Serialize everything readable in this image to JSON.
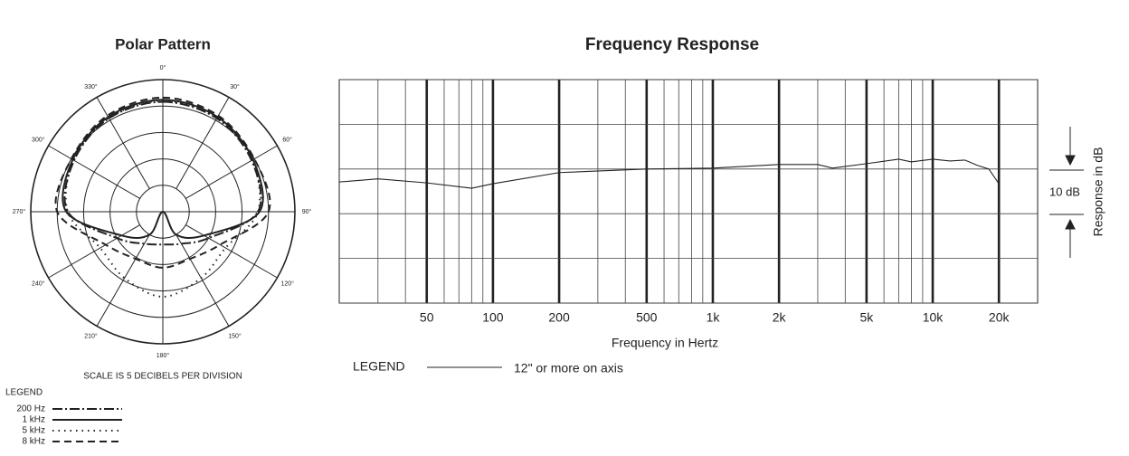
{
  "chart_data": [
    {
      "type": "polar",
      "title": "Polar Pattern",
      "annotation": "SCALE IS 5 DECIBELS PER DIVISION",
      "legend_title": "LEGEND",
      "theta": [
        0,
        30,
        60,
        90,
        120,
        150,
        180,
        210,
        240,
        270,
        300,
        330
      ],
      "thetaticks": [
        {
          "value": 0,
          "label": "0°"
        },
        {
          "value": 30,
          "label": "30°"
        },
        {
          "value": 60,
          "label": "60°"
        },
        {
          "value": 90,
          "label": "90°"
        },
        {
          "value": 120,
          "label": "120°"
        },
        {
          "value": 150,
          "label": "150°"
        },
        {
          "value": 180,
          "label": "180°"
        },
        {
          "value": 210,
          "label": "210°"
        },
        {
          "value": 240,
          "label": "240°"
        },
        {
          "value": 270,
          "label": "270°"
        },
        {
          "value": 300,
          "label": "300°"
        },
        {
          "value": 330,
          "label": "330°"
        }
      ],
      "rlim": [
        -25,
        0
      ],
      "rticks": [
        -25,
        -20,
        -15,
        -10,
        -5,
        0
      ],
      "series": [
        {
          "name": "200 Hz",
          "color": "#222222",
          "dash": "dash-dot",
          "values": [
            -4.2,
            -4.6,
            -5.6,
            -7,
            -15,
            -18,
            -18.8,
            -18,
            -15,
            -7,
            -5.6,
            -4.6
          ]
        },
        {
          "name": "1 kHz",
          "color": "#222222",
          "dash": "solid",
          "values": [
            -3.8,
            -4.3,
            -5.3,
            -6.7,
            -16,
            -20,
            -25,
            -20,
            -16,
            -6.7,
            -5.3,
            -4.3
          ]
        },
        {
          "name": "5 kHz",
          "color": "#222222",
          "dash": "dotted",
          "values": [
            -4,
            -4.5,
            -5.5,
            -7,
            -11.3,
            -10.5,
            -8.9,
            -10.5,
            -11.3,
            -7,
            -5.5,
            -4.5
          ]
        },
        {
          "name": "8 kHz",
          "color": "#222222",
          "dash": "dashed",
          "values": [
            -3.4,
            -4,
            -5,
            -5,
            -12.5,
            -14.7,
            -14.4,
            -14.7,
            -12.5,
            -5,
            -5,
            -4
          ]
        }
      ]
    },
    {
      "type": "line",
      "title": "Frequency Response",
      "x_label": "Frequency in Hertz",
      "y_label": "Response in dB",
      "annotation": "10 dB",
      "legend_title": "LEGEND",
      "log_x": true,
      "xlim": [
        20,
        30000
      ],
      "ylim": [
        -30,
        20
      ],
      "yticks": [
        -30,
        -20,
        -10,
        0,
        10,
        20
      ],
      "xticks": [
        50,
        100,
        200,
        500,
        {
          "value": 1000,
          "label": "1k"
        },
        {
          "value": 2000,
          "label": "2k"
        },
        {
          "value": 5000,
          "label": "5k"
        },
        {
          "value": 10000,
          "label": "10k"
        },
        {
          "value": 20000,
          "label": "20k"
        }
      ],
      "x": [
        20,
        30,
        50,
        80,
        100,
        200,
        500,
        1000,
        2000,
        3000,
        3500,
        5000,
        7000,
        8000,
        10000,
        12000,
        14000,
        16000,
        18000,
        20000
      ],
      "series": [
        {
          "name": "12\" or more on axis",
          "color": "#222222",
          "values": [
            -2.9,
            -2.2,
            -3.1,
            -4.3,
            -3.3,
            -0.8,
            0,
            0.2,
            1,
            1,
            0.2,
            1.2,
            2.2,
            1.6,
            2.2,
            1.8,
            2,
            0.8,
            0,
            -3.3
          ]
        }
      ]
    }
  ]
}
